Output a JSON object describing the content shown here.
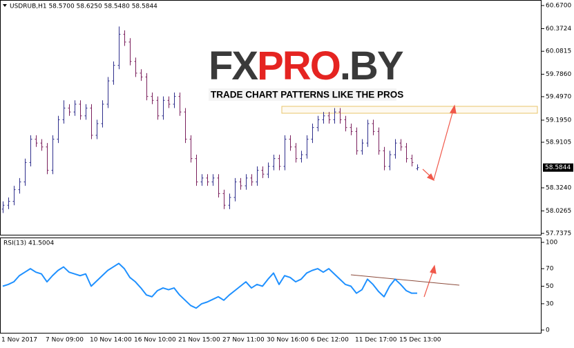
{
  "header": "USDRUB,H1  58.5700 58.6250 58.5480 58.5844",
  "watermark": {
    "parts": [
      "FX",
      "PRO",
      ".BY"
    ],
    "tagline": "TRADE CHART PATTERNS LIKE THE PROS"
  },
  "chart_data": [
    {
      "type": "ohlc",
      "colors": {
        "up": "#2e2e8c",
        "down": "#7a1f5c"
      },
      "categories": [
        "1 Nov 2017",
        null,
        null,
        null,
        null,
        null,
        null,
        null,
        "7 Nov 09:00",
        null,
        null,
        null,
        null,
        null,
        null,
        null,
        "10 Nov 14:00",
        null,
        null,
        null,
        null,
        null,
        null,
        null,
        "16 Nov 10:00",
        null,
        null,
        null,
        null,
        null,
        null,
        null,
        "21 Nov 15:00",
        null,
        null,
        null,
        null,
        null,
        null,
        null,
        "27 Nov 11:00",
        null,
        null,
        null,
        null,
        null,
        null,
        null,
        "30 Nov 16:00",
        null,
        null,
        null,
        null,
        null,
        null,
        null,
        "6 Dec 12:00",
        null,
        null,
        null,
        null,
        null,
        null,
        null,
        "11 Dec 17:00",
        null,
        null,
        null,
        null,
        null,
        null,
        null,
        "15 Dec 13:00",
        null,
        null,
        null
      ],
      "open": [
        58.05,
        58.1,
        58.15,
        58.3,
        58.4,
        58.65,
        58.95,
        58.9,
        58.85,
        58.55,
        58.95,
        59.2,
        59.35,
        59.3,
        59.4,
        59.25,
        59.35,
        59.0,
        59.15,
        59.4,
        59.7,
        59.9,
        60.3,
        60.2,
        59.95,
        59.8,
        59.75,
        59.5,
        59.45,
        59.25,
        59.45,
        59.4,
        59.5,
        59.3,
        58.95,
        58.7,
        58.4,
        58.45,
        58.4,
        58.45,
        58.25,
        58.1,
        58.2,
        58.4,
        58.35,
        58.45,
        58.4,
        58.55,
        58.5,
        58.6,
        58.7,
        58.6,
        58.95,
        58.85,
        58.7,
        58.75,
        58.95,
        59.1,
        59.2,
        59.25,
        59.2,
        59.3,
        59.2,
        59.1,
        59.05,
        58.8,
        58.9,
        59.15,
        59.05,
        58.8,
        58.6,
        58.75,
        58.9,
        58.85,
        58.7,
        58.57
      ],
      "high": [
        58.15,
        58.2,
        58.35,
        58.45,
        58.7,
        59.0,
        59.0,
        58.95,
        58.9,
        59.0,
        59.25,
        59.45,
        59.4,
        59.45,
        59.45,
        59.4,
        59.4,
        59.2,
        59.45,
        59.75,
        59.95,
        60.4,
        60.35,
        60.25,
        60.0,
        59.85,
        59.8,
        59.55,
        59.5,
        59.5,
        59.5,
        59.55,
        59.55,
        59.35,
        59.0,
        58.75,
        58.5,
        58.5,
        58.5,
        58.5,
        58.3,
        58.25,
        58.45,
        58.45,
        58.5,
        58.5,
        58.6,
        58.6,
        58.65,
        58.75,
        58.75,
        59.0,
        59.0,
        58.9,
        58.8,
        59.0,
        59.15,
        59.25,
        59.3,
        59.3,
        59.35,
        59.35,
        59.25,
        59.15,
        59.1,
        58.95,
        59.2,
        59.2,
        59.1,
        58.85,
        58.8,
        58.95,
        58.95,
        58.9,
        58.75,
        58.625
      ],
      "low": [
        58.0,
        58.05,
        58.1,
        58.25,
        58.35,
        58.6,
        58.85,
        58.8,
        58.5,
        58.5,
        58.9,
        59.15,
        59.25,
        59.25,
        59.2,
        59.2,
        58.95,
        58.95,
        59.1,
        59.35,
        59.65,
        59.85,
        60.15,
        59.9,
        59.75,
        59.7,
        59.45,
        59.4,
        59.2,
        59.2,
        59.35,
        59.35,
        59.25,
        58.9,
        58.65,
        58.35,
        58.35,
        58.35,
        58.35,
        58.2,
        58.05,
        58.05,
        58.15,
        58.3,
        58.3,
        58.35,
        58.35,
        58.45,
        58.45,
        58.55,
        58.55,
        58.55,
        58.8,
        58.65,
        58.65,
        58.7,
        58.9,
        59.05,
        59.15,
        59.15,
        59.15,
        59.15,
        59.05,
        59.0,
        58.75,
        58.75,
        58.85,
        59.0,
        58.75,
        58.55,
        58.55,
        58.7,
        58.8,
        58.65,
        58.6,
        58.548
      ],
      "close": [
        58.1,
        58.15,
        58.3,
        58.4,
        58.65,
        58.95,
        58.9,
        58.85,
        58.55,
        58.95,
        59.2,
        59.35,
        59.3,
        59.4,
        59.25,
        59.35,
        59.0,
        59.15,
        59.4,
        59.7,
        59.9,
        60.3,
        60.2,
        59.95,
        59.8,
        59.75,
        59.5,
        59.45,
        59.25,
        59.45,
        59.4,
        59.5,
        59.3,
        58.95,
        58.7,
        58.4,
        58.45,
        58.4,
        58.45,
        58.25,
        58.1,
        58.2,
        58.4,
        58.35,
        58.45,
        58.4,
        58.55,
        58.5,
        58.6,
        58.7,
        58.6,
        58.95,
        58.85,
        58.7,
        58.75,
        58.95,
        59.1,
        59.2,
        59.25,
        59.2,
        59.3,
        59.2,
        59.1,
        59.05,
        58.8,
        58.9,
        59.15,
        59.05,
        58.8,
        58.6,
        58.75,
        58.9,
        58.85,
        58.7,
        58.65,
        58.5844
      ],
      "last_price": {
        "value": 58.5844,
        "label": "58.5844"
      },
      "ylim": [
        57.7375,
        60.67
      ],
      "yticks": [
        {
          "value": 60.67,
          "label": "60.6700"
        },
        {
          "value": 60.3724,
          "label": "60.3724"
        },
        {
          "value": 60.0815,
          "label": "60.0815"
        },
        {
          "value": 59.786,
          "label": "59.7860"
        },
        {
          "value": 59.497,
          "label": "59.4970"
        },
        {
          "value": 59.195,
          "label": "59.1950"
        },
        {
          "value": 58.9105,
          "label": "58.9105"
        },
        {
          "value": 58.324,
          "label": "58.3240"
        },
        {
          "value": 58.0265,
          "label": "58.0265"
        },
        {
          "value": 57.7375,
          "label": "57.7375"
        }
      ]
    },
    {
      "type": "line",
      "title": "RSI(13) 41.5004",
      "color": "#1e90ff",
      "values": [
        50,
        52,
        55,
        62,
        66,
        70,
        66,
        64,
        55,
        62,
        68,
        72,
        66,
        64,
        62,
        64,
        50,
        56,
        62,
        68,
        72,
        76,
        70,
        60,
        55,
        48,
        40,
        38,
        45,
        48,
        46,
        48,
        40,
        34,
        28,
        25,
        30,
        32,
        35,
        38,
        34,
        40,
        45,
        50,
        55,
        48,
        52,
        50,
        58,
        65,
        52,
        62,
        60,
        55,
        58,
        65,
        68,
        70,
        66,
        70,
        64,
        58,
        52,
        50,
        42,
        46,
        58,
        52,
        44,
        38,
        50,
        58,
        52,
        45,
        42,
        42
      ],
      "ylim": [
        0,
        100
      ],
      "yticks": [
        100,
        70,
        50,
        30,
        0
      ]
    }
  ]
}
